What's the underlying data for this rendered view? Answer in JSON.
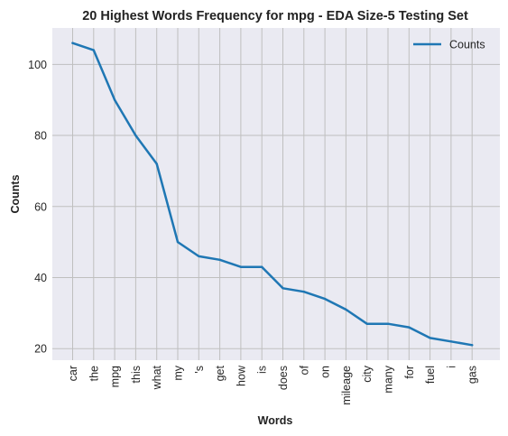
{
  "chart_data": {
    "type": "line",
    "title": "20 Highest Words Frequency for mpg - EDA Size-5 Testing Set",
    "xlabel": "Words",
    "ylabel": "Counts",
    "categories": [
      "car",
      "the",
      "mpg",
      "this",
      "what",
      "my",
      "'s",
      "get",
      "how",
      "is",
      "does",
      "of",
      "on",
      "mileage",
      "city",
      "many",
      "for",
      "fuel",
      "i",
      "gas"
    ],
    "series": [
      {
        "name": "Counts",
        "values": [
          106,
          104,
          90,
          80,
          72,
          50,
          46,
          45,
          43,
          43,
          37,
          36,
          34,
          31,
          27,
          27,
          26,
          23,
          22,
          21
        ]
      }
    ],
    "yticks": [
      20,
      40,
      60,
      80,
      100
    ],
    "ylim": [
      16.75,
      110.25
    ],
    "grid": true,
    "legend_position": "top-right",
    "colors": {
      "line": "#1f77b4",
      "plot_bg": "#eaeaf2",
      "grid": "#bfbfbf"
    }
  }
}
